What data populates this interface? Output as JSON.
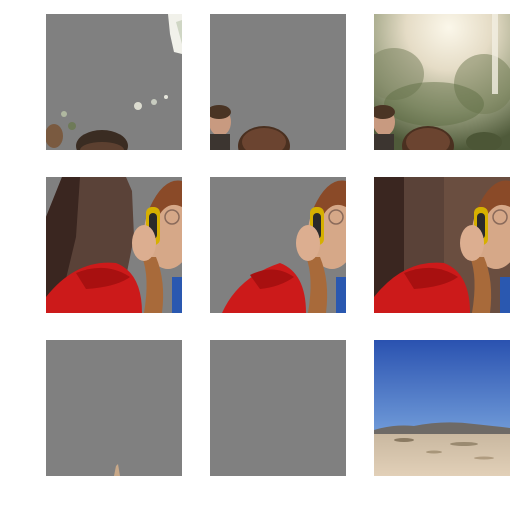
{
  "grid": {
    "rows": 3,
    "columns": 3,
    "mask_gray": "#808080",
    "rows_content": [
      {
        "subject": "crowd-in-sunlit-park",
        "tiles": [
          "masked-partial",
          "masked-people",
          "original"
        ]
      },
      {
        "subject": "woman-with-headphones-red-sweater",
        "tiles": [
          "masked-partial",
          "masked-person",
          "original"
        ]
      },
      {
        "subject": "desert-landscape-blue-sky",
        "tiles": [
          "masked-nearly-empty",
          "masked-empty",
          "original"
        ]
      }
    ]
  }
}
